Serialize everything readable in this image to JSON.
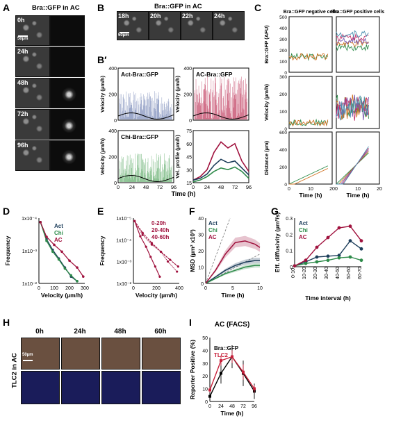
{
  "panels": {
    "A": {
      "label": "A",
      "title": "Bra::GFP in AC",
      "times": [
        "0h",
        "24h",
        "48h",
        "72h",
        "96h"
      ],
      "scale": "50µm"
    },
    "B": {
      "label": "B",
      "title": "Bra::GFP in AC",
      "times": [
        "18h",
        "20h",
        "22h",
        "24h"
      ],
      "scale": "50µm"
    },
    "B2": {
      "label": "B′",
      "subplots": [
        {
          "title": "Act-Bra::GFP",
          "ylabel": "Velocity (µm/h)",
          "yticks": [
            "0",
            "200",
            "400"
          ],
          "color": "#5b6fa8"
        },
        {
          "title": "AC-Bra::GFP",
          "ylabel": "Velocity (µm/h)",
          "yticks": [
            "0",
            "200",
            "400"
          ],
          "color": "#b3123c"
        },
        {
          "title": "Chi-Bra::GFP",
          "ylabel": "Velocity (µm/h)",
          "yticks": [
            "0",
            "200",
            "400"
          ],
          "color": "#3e9a4a"
        },
        {
          "title": "",
          "ylabel": "Vel. profile (µm/h)",
          "yticks": [
            "15",
            "30",
            "45",
            "60",
            "75"
          ],
          "color": "#000000"
        }
      ],
      "xticks": [
        "0",
        "24",
        "48",
        "72",
        "96"
      ],
      "xlabel": "Time (h)"
    },
    "C": {
      "label": "C",
      "col_titles": [
        "Bra::GFP negative cells",
        "Bra::GFP positive cells"
      ],
      "ylabels": [
        "Bra::GFP (AFU)",
        "Velocity (µm/h)",
        "Distance (µm)"
      ],
      "yticks": [
        [
          "0",
          "100",
          "200",
          "300",
          "400",
          "500"
        ],
        [
          "0",
          "100",
          "200",
          "300"
        ],
        [
          "0",
          "200",
          "400",
          "600"
        ]
      ],
      "xticks": [
        "0",
        "10",
        "20"
      ],
      "xlabel": "Time (h)"
    },
    "D": {
      "label": "D",
      "ylabel": "Frequency",
      "xlabel": "Velocity (µm/h)",
      "yticks": [
        "1x10⁻²",
        "1x10⁻³",
        "1x10⁻⁴"
      ],
      "xticks": [
        "0",
        "100",
        "200",
        "300"
      ],
      "legend": [
        {
          "text": "Act",
          "color": "#1c3d5a"
        },
        {
          "text": "Chi",
          "color": "#2e8b4a"
        },
        {
          "text": "AC",
          "color": "#a0123e"
        }
      ]
    },
    "E": {
      "label": "E",
      "ylabel": "Frequency",
      "xlabel": "Velocity (µm/h)",
      "yticks": [
        "1x10⁻²",
        "1x10⁻³",
        "1x10⁻⁴",
        "1x10⁻⁵"
      ],
      "xticks": [
        "0",
        "200",
        "400"
      ],
      "legend": [
        {
          "text": "0-20h",
          "color": "#a0123e"
        },
        {
          "text": "20-40h",
          "color": "#a0123e"
        },
        {
          "text": "40-60h",
          "color": "#a0123e"
        }
      ]
    },
    "F": {
      "label": "F",
      "ylabel": "MSD (µm² x10³)",
      "xlabel": "Time (h)",
      "yticks": [
        "0",
        "10",
        "20",
        "30",
        "40"
      ],
      "xticks": [
        "0",
        "5",
        "10"
      ],
      "legend": [
        {
          "text": "Act",
          "color": "#1c3d5a"
        },
        {
          "text": "Chi",
          "color": "#2e8b4a"
        },
        {
          "text": "AC",
          "color": "#a0123e"
        }
      ]
    },
    "G": {
      "label": "G",
      "ylabel": "Eff. diffusivity (µm²/s)",
      "xlabel": "Time interval (h)",
      "yticks": [
        "0",
        "0.1",
        "0.2",
        "0.3"
      ],
      "xticks": [
        "0-10",
        "10-20",
        "20-30",
        "30-40",
        "40-50",
        "50-60",
        "60-70"
      ],
      "legend": [
        {
          "text": "Act",
          "color": "#1c3d5a"
        },
        {
          "text": "Chi",
          "color": "#2e8b4a"
        },
        {
          "text": "AC",
          "color": "#a0123e"
        }
      ]
    },
    "H": {
      "label": "H",
      "side": "TLC2 in AC",
      "times": [
        "0h",
        "24h",
        "48h",
        "60h"
      ],
      "scale": "50µm"
    },
    "I": {
      "label": "I",
      "title": "AC (FACS)",
      "ylabel": "Reporter Positive (%)",
      "xlabel": "Time (h)",
      "yticks": [
        "0",
        "10",
        "20",
        "30",
        "40",
        "50"
      ],
      "xticks": [
        "0",
        "24",
        "48",
        "72",
        "96"
      ],
      "legend": [
        {
          "text": "Bra::GFP",
          "color": "#000000"
        },
        {
          "text": "TLC2",
          "color": "#c8203a"
        }
      ]
    }
  },
  "chart_data": [
    {
      "panel": "D",
      "type": "line",
      "xlabel": "Velocity (µm/h)",
      "ylabel": "Frequency",
      "log_y": true,
      "ylim": [
        4e-05,
        0.03
      ],
      "series": [
        {
          "name": "Act",
          "x": [
            10,
            50,
            90,
            130,
            170,
            210,
            250
          ],
          "y": [
            0.02,
            0.0035,
            0.0012,
            0.0005,
            0.0002,
            8e-05,
            5e-05
          ]
        },
        {
          "name": "Chi",
          "x": [
            10,
            50,
            90,
            130,
            170,
            210,
            250
          ],
          "y": [
            0.02,
            0.003,
            0.001,
            0.00045,
            0.00018,
            9e-05,
            5e-05
          ]
        },
        {
          "name": "AC",
          "x": [
            10,
            50,
            100,
            150,
            200,
            250,
            290
          ],
          "y": [
            0.02,
            0.0045,
            0.002,
            0.001,
            0.0004,
            0.0002,
            8e-05
          ]
        }
      ]
    },
    {
      "panel": "E",
      "type": "line",
      "xlabel": "Velocity (µm/h)",
      "ylabel": "Frequency",
      "log_y": true,
      "ylim": [
        4e-06,
        0.03
      ],
      "series": [
        {
          "name": "0-20h",
          "x": [
            10,
            60,
            110,
            150,
            190,
            230
          ],
          "y": [
            0.02,
            0.0025,
            0.0006,
            0.00015,
            4e-05,
            1e-05
          ]
        },
        {
          "name": "20-40h",
          "x": [
            10,
            80,
            160,
            240,
            320,
            390
          ],
          "y": [
            0.02,
            0.004,
            0.001,
            0.0003,
            0.0001,
            4e-05
          ]
        },
        {
          "name": "40-60h",
          "x": [
            10,
            80,
            160,
            240,
            300,
            380
          ],
          "y": [
            0.02,
            0.003,
            0.0008,
            0.0003,
            8e-05,
            2e-05
          ]
        }
      ]
    },
    {
      "panel": "F",
      "type": "line",
      "xlabel": "Time (h)",
      "ylabel": "MSD (µm² x10³)",
      "xlim": [
        0,
        11
      ],
      "ylim": [
        0,
        40
      ],
      "series": [
        {
          "name": "Act",
          "x": [
            0,
            2,
            4,
            6,
            8,
            10,
            11
          ],
          "y": [
            0,
            4,
            8,
            11,
            13,
            14,
            14
          ]
        },
        {
          "name": "Chi",
          "x": [
            0,
            2,
            4,
            6,
            8,
            10,
            11
          ],
          "y": [
            0,
            3,
            6,
            8,
            10,
            11,
            11
          ]
        },
        {
          "name": "AC",
          "x": [
            0,
            2,
            4,
            6,
            8,
            10,
            11
          ],
          "y": [
            0,
            8,
            18,
            25,
            26,
            24,
            22
          ]
        }
      ]
    },
    {
      "panel": "G",
      "type": "line",
      "xlabel": "Time interval (h)",
      "ylabel": "Eff. diffusivity (µm²/s)",
      "ylim": [
        0,
        0.3
      ],
      "categories": [
        "0-10",
        "10-20",
        "20-30",
        "30-40",
        "40-50",
        "50-60",
        "60-70"
      ],
      "series": [
        {
          "name": "Act",
          "values": [
            0.005,
            0.03,
            0.06,
            0.065,
            0.07,
            0.16,
            0.11
          ]
        },
        {
          "name": "Chi",
          "values": [
            0.005,
            0.02,
            0.03,
            0.04,
            0.055,
            0.06,
            0.04
          ]
        },
        {
          "name": "AC",
          "values": [
            0.005,
            0.04,
            0.12,
            0.18,
            0.24,
            0.25,
            0.16
          ]
        }
      ]
    },
    {
      "panel": "I",
      "type": "line",
      "xlabel": "Time (h)",
      "ylabel": "Reporter Positive (%)",
      "ylim": [
        0,
        50
      ],
      "x": [
        0,
        24,
        48,
        72,
        96
      ],
      "series": [
        {
          "name": "Bra::GFP",
          "values": [
            4,
            22,
            35,
            22,
            8
          ],
          "errors": [
            3,
            8,
            9,
            10,
            6
          ]
        },
        {
          "name": "TLC2",
          "values": [
            9,
            32,
            35,
            23,
            10
          ],
          "errors": [
            2,
            4,
            5,
            6,
            3
          ]
        }
      ]
    },
    {
      "panel": "B2-profile",
      "type": "line",
      "xlabel": "Time (h)",
      "ylabel": "Vel. profile (µm/h)",
      "ylim": [
        15,
        75
      ],
      "x": [
        0,
        12,
        24,
        36,
        48,
        60,
        72,
        84,
        96
      ],
      "series": [
        {
          "values": [
            18,
            22,
            30,
            50,
            62,
            55,
            60,
            40,
            28
          ]
        },
        {
          "values": [
            18,
            20,
            25,
            35,
            42,
            38,
            40,
            32,
            24
          ]
        },
        {
          "values": [
            16,
            18,
            22,
            28,
            32,
            30,
            33,
            28,
            20
          ]
        }
      ]
    }
  ]
}
